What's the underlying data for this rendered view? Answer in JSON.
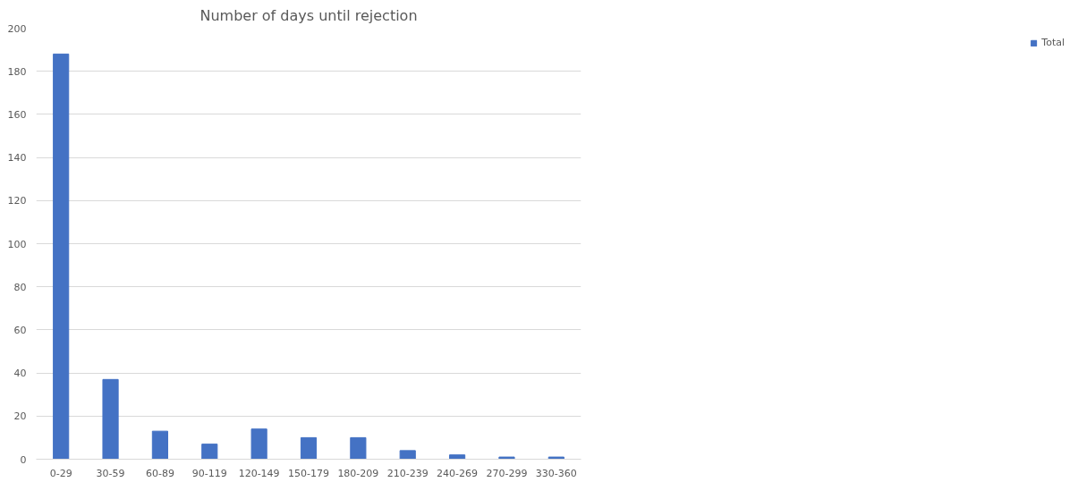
{
  "chart_data": {
    "type": "bar",
    "title": "Number of days until rejection",
    "categories": [
      "0-29",
      "30-59",
      "60-89",
      "90-119",
      "120-149",
      "150-179",
      "180-209",
      "210-239",
      "240-269",
      "270-299",
      "330-360"
    ],
    "series": [
      {
        "name": "Total",
        "color": "#4472c4",
        "values": [
          188,
          37,
          13,
          7,
          14,
          10,
          10,
          4,
          2,
          1,
          1
        ]
      }
    ],
    "ylim": [
      0,
      200
    ],
    "yticks": [
      0,
      20,
      40,
      60,
      80,
      100,
      120,
      140,
      160,
      180,
      200
    ],
    "grid": "y",
    "legend": "right"
  }
}
